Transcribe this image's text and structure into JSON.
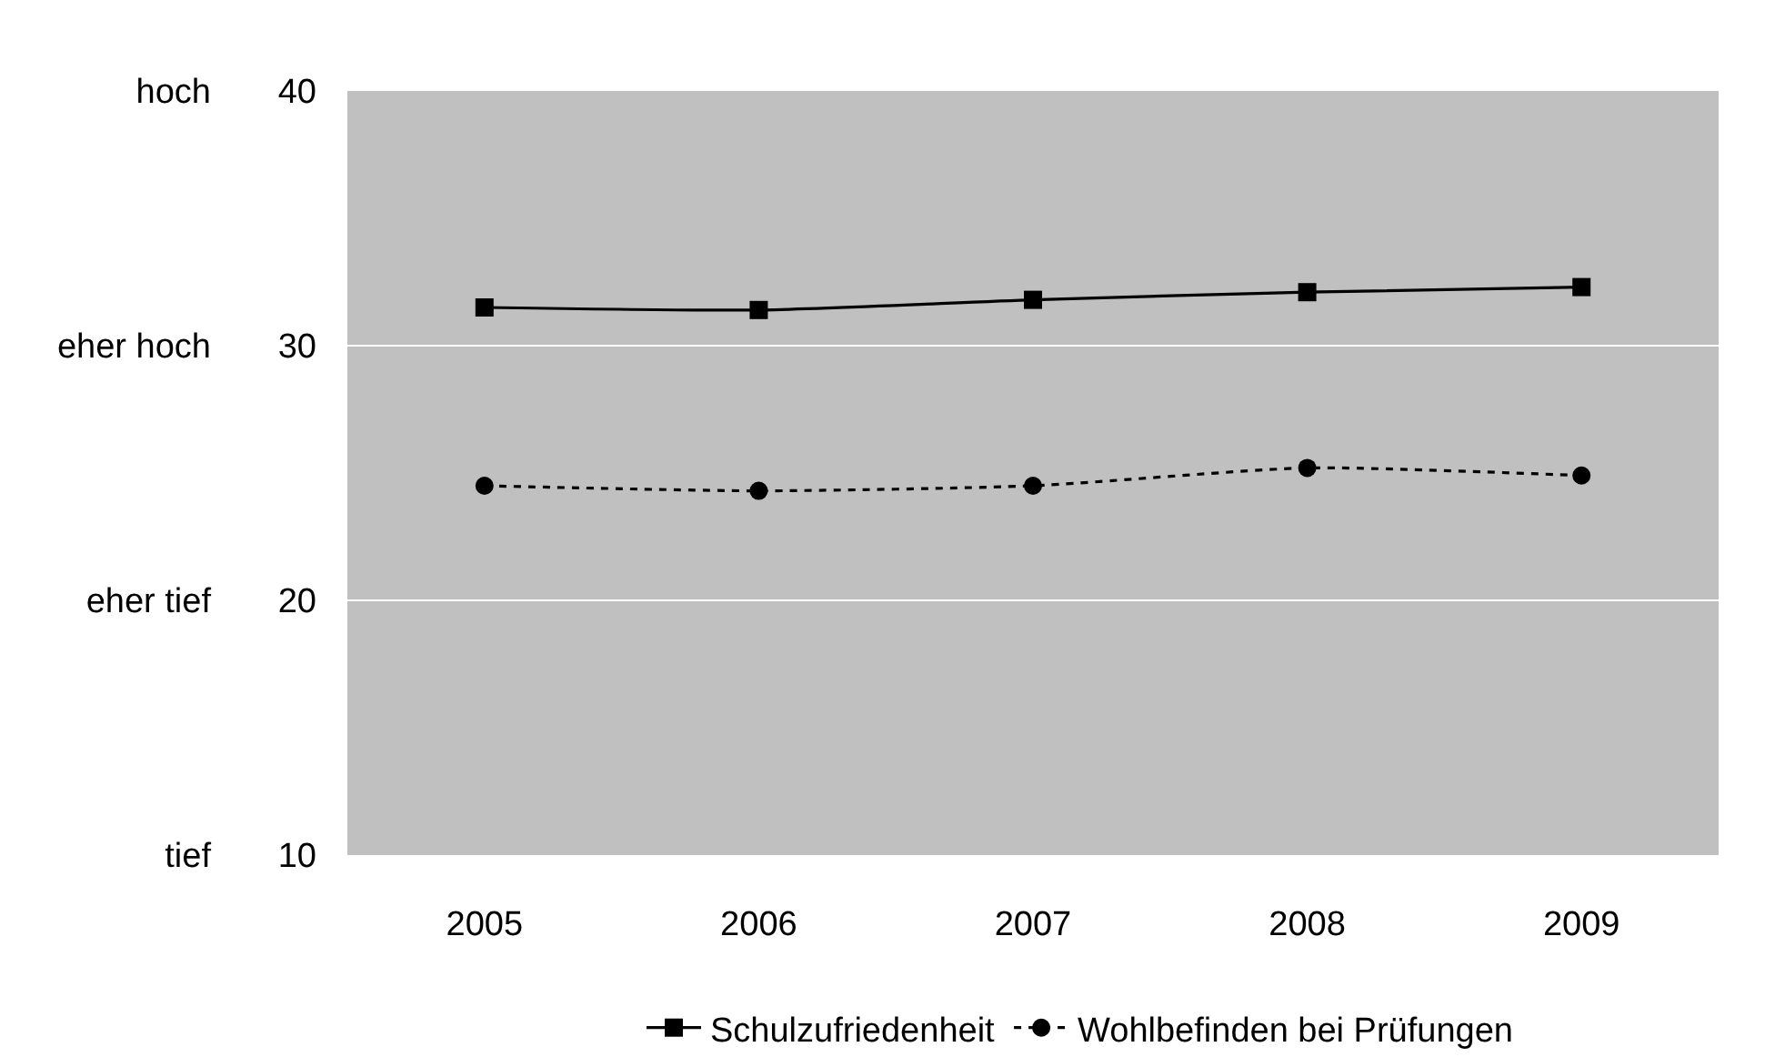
{
  "chart_data": {
    "type": "line",
    "categories": [
      "2005",
      "2006",
      "2007",
      "2008",
      "2009"
    ],
    "series": [
      {
        "name": "Schulzufriedenheit",
        "color": "#000000",
        "values": [
          31.5,
          31.4,
          31.8,
          32.1,
          32.3
        ],
        "marker": "square",
        "line_style": "solid"
      },
      {
        "name": "Wohlbefinden bei Prüfungen",
        "color": "#000000",
        "values": [
          24.5,
          24.3,
          24.5,
          25.2,
          24.9
        ],
        "marker": "circle",
        "line_style": "dotted"
      }
    ],
    "ylim": [
      10,
      40
    ],
    "yticks": [
      10,
      20,
      30,
      40
    ],
    "y2_categories": [
      "hoch",
      "eher hoch",
      "eher tief",
      "tief"
    ],
    "grid": "y",
    "legend": "bottom"
  }
}
